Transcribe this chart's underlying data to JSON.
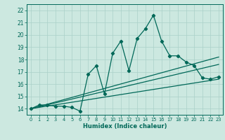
{
  "xlabel": "Humidex (Indice chaleur)",
  "bg_color": "#cce8e0",
  "grid_color": "#aad0c8",
  "line_color": "#006858",
  "xlim": [
    -0.5,
    23.5
  ],
  "ylim": [
    13.5,
    22.5
  ],
  "xticks": [
    0,
    1,
    2,
    3,
    4,
    5,
    6,
    7,
    8,
    9,
    10,
    11,
    12,
    13,
    14,
    15,
    16,
    17,
    18,
    19,
    20,
    21,
    22,
    23
  ],
  "yticks": [
    14,
    15,
    16,
    17,
    18,
    19,
    20,
    21,
    22
  ],
  "series1_x": [
    0,
    1,
    2,
    3,
    4,
    5,
    6,
    7,
    8,
    9,
    10,
    11,
    12,
    13,
    14,
    15,
    16,
    17,
    18,
    19,
    20,
    21,
    22,
    23
  ],
  "series1_y": [
    14.0,
    14.3,
    14.3,
    14.2,
    14.2,
    14.1,
    13.8,
    16.8,
    17.5,
    15.2,
    18.5,
    19.5,
    17.1,
    19.7,
    20.5,
    21.6,
    19.5,
    18.3,
    18.3,
    17.8,
    17.5,
    16.5,
    16.4,
    16.6
  ],
  "series2_x": [
    0,
    23
  ],
  "series2_y": [
    14.0,
    17.6
  ],
  "series3_x": [
    0,
    23
  ],
  "series3_y": [
    14.0,
    16.4
  ],
  "series4_x": [
    0,
    23
  ],
  "series4_y": [
    14.0,
    18.2
  ]
}
